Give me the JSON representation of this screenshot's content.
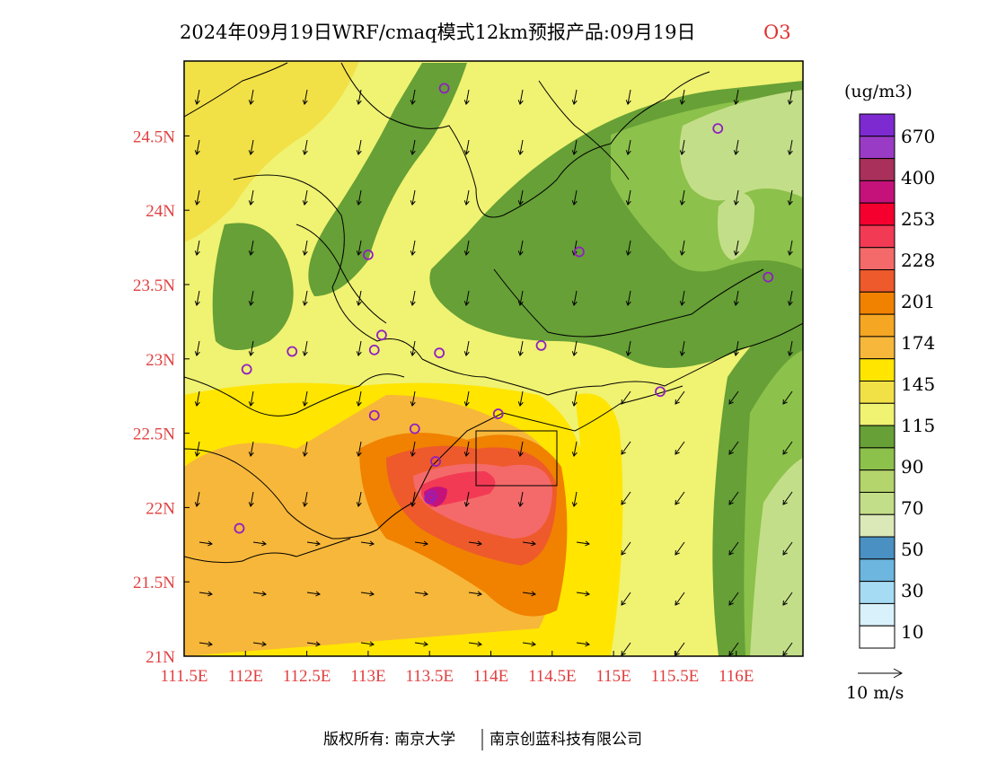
{
  "title": {
    "main": "2024年09月19日WRF/cmaq模式12km预报产品:09月19日",
    "species": "O3"
  },
  "colors": {
    "levels": [
      "#ffffff",
      "#d9f1fa",
      "#a6dcf3",
      "#6cb6e0",
      "#4a90c2",
      "#dbe8b8",
      "#c3de88",
      "#b4d46c",
      "#8cc14b",
      "#66a036",
      "#f0f272",
      "#f2e047",
      "#ffe500",
      "#f7b73a",
      "#f5a623",
      "#f08200",
      "#ee5a2b",
      "#f46a6a",
      "#f23a55",
      "#f5002e",
      "#c4127a",
      "#a8305a",
      "#9a3bc5",
      "#7d2ad0"
    ],
    "station_marker": "#9020c0",
    "axis_text": "#e04040",
    "border": "#000000"
  },
  "map": {
    "lon_ticks": [
      "111.5E",
      "112E",
      "112.5E",
      "113E",
      "113.5E",
      "114E",
      "114.5E",
      "115E",
      "115.5E",
      "116E"
    ],
    "lat_ticks": [
      "21N",
      "21.5N",
      "22N",
      "22.5N",
      "23N",
      "23.5N",
      "24N",
      "24.5N"
    ],
    "lon_range": [
      111.5,
      116.5
    ],
    "lat_range": [
      21.0,
      25.0
    ],
    "stations": [
      [
        113.62,
        24.82
      ],
      [
        115.85,
        24.55
      ],
      [
        113.0,
        23.7
      ],
      [
        114.72,
        23.72
      ],
      [
        116.26,
        23.55
      ],
      [
        113.11,
        23.16
      ],
      [
        113.05,
        23.06
      ],
      [
        112.38,
        23.05
      ],
      [
        113.58,
        23.04
      ],
      [
        114.41,
        23.09
      ],
      [
        112.01,
        22.93
      ],
      [
        115.38,
        22.78
      ],
      [
        113.05,
        22.62
      ],
      [
        113.38,
        22.53
      ],
      [
        114.06,
        22.63
      ],
      [
        113.55,
        22.31
      ],
      [
        113.52,
        22.08
      ],
      [
        113.5,
        22.06
      ],
      [
        111.95,
        21.86
      ]
    ]
  },
  "colorbar": {
    "unit": "(ug/m3)",
    "labels": [
      "670",
      "400",
      "253",
      "228",
      "201",
      "174",
      "145",
      "115",
      "90",
      "70",
      "50",
      "30",
      "10"
    ]
  },
  "wind_legend": {
    "label": "10 m/s"
  },
  "credit": {
    "left": "版权所有: 南京大学",
    "right": "南京创蓝科技有限公司"
  }
}
